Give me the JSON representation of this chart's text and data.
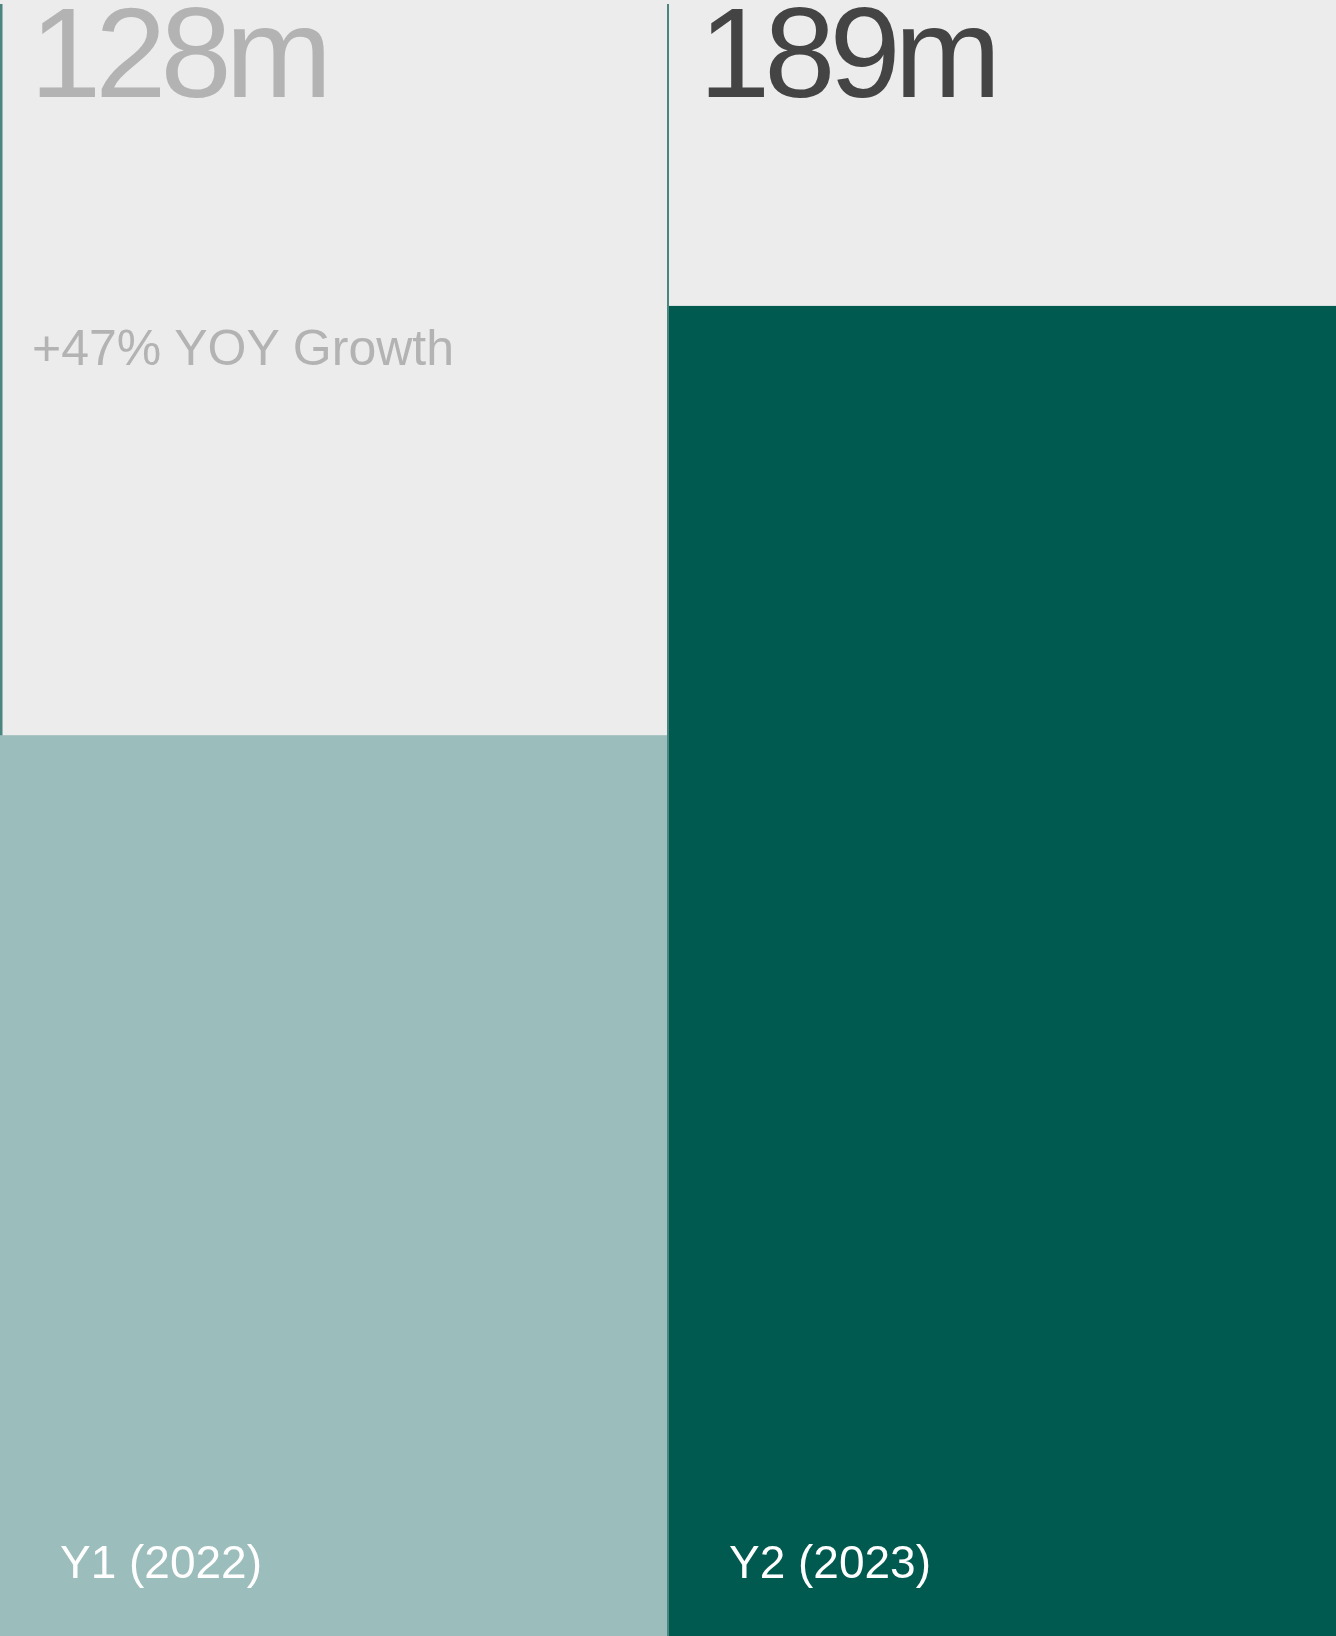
{
  "chart_data": {
    "type": "bar",
    "categories": [
      "Y1 (2022)",
      "Y2 (2023)"
    ],
    "values": [
      128,
      189
    ],
    "colors": [
      "#9bbdbb",
      "#005a50"
    ],
    "value_labels": [
      "128m",
      "189m"
    ],
    "annotations": [
      "+47% YOY Growth"
    ]
  }
}
